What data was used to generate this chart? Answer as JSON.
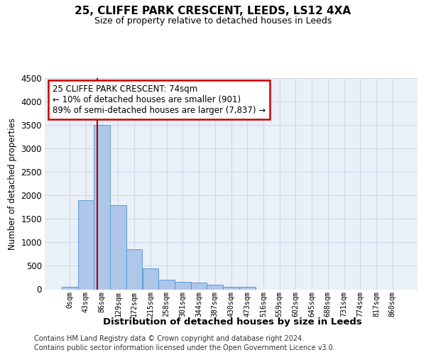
{
  "title": "25, CLIFFE PARK CRESCENT, LEEDS, LS12 4XA",
  "subtitle": "Size of property relative to detached houses in Leeds",
  "xlabel": "Distribution of detached houses by size in Leeds",
  "ylabel": "Number of detached properties",
  "footer_line1": "Contains HM Land Registry data © Crown copyright and database right 2024.",
  "footer_line2": "Contains public sector information licensed under the Open Government Licence v3.0.",
  "bin_labels": [
    "0sqm",
    "43sqm",
    "86sqm",
    "129sqm",
    "172sqm",
    "215sqm",
    "258sqm",
    "301sqm",
    "344sqm",
    "387sqm",
    "430sqm",
    "473sqm",
    "516sqm",
    "559sqm",
    "602sqm",
    "645sqm",
    "688sqm",
    "731sqm",
    "774sqm",
    "817sqm",
    "860sqm"
  ],
  "bar_values": [
    50,
    1900,
    3500,
    1800,
    850,
    450,
    200,
    155,
    150,
    100,
    55,
    55,
    0,
    0,
    0,
    0,
    0,
    0,
    0,
    0,
    0
  ],
  "bar_color": "#aec6e8",
  "bar_edge_color": "#5b9bd5",
  "grid_color": "#d0d8e8",
  "background_color": "#eaf0f8",
  "red_line_color": "#aa0000",
  "annotation_line1": "25 CLIFFE PARK CRESCENT: 74sqm",
  "annotation_line2": "← 10% of detached houses are smaller (901)",
  "annotation_line3": "89% of semi-detached houses are larger (7,837) →",
  "annotation_box_color": "#cc0000",
  "ylim": [
    0,
    4500
  ],
  "yticks": [
    0,
    500,
    1000,
    1500,
    2000,
    2500,
    3000,
    3500,
    4000,
    4500
  ],
  "red_line_x": 1.72,
  "figsize": [
    6.0,
    5.0
  ],
  "dpi": 100
}
